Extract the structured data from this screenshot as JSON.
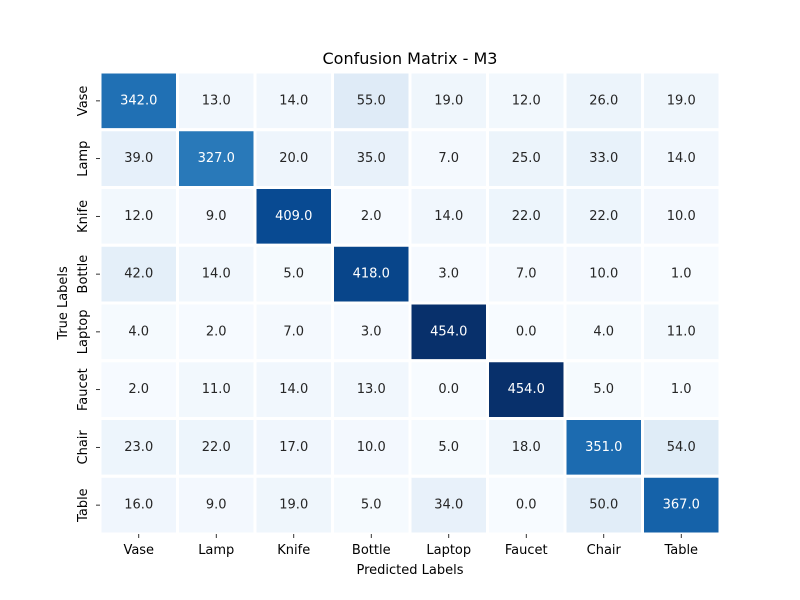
{
  "chart_data": {
    "type": "heatmap",
    "title": "Confusion Matrix - M3",
    "xlabel": "Predicted Labels",
    "ylabel": "True Labels",
    "x_categories": [
      "Vase",
      "Lamp",
      "Knife",
      "Bottle",
      "Laptop",
      "Faucet",
      "Chair",
      "Table"
    ],
    "y_categories": [
      "Vase",
      "Lamp",
      "Knife",
      "Bottle",
      "Laptop",
      "Faucet",
      "Chair",
      "Table"
    ],
    "values": [
      [
        342.0,
        13.0,
        14.0,
        55.0,
        19.0,
        12.0,
        26.0,
        19.0
      ],
      [
        39.0,
        327.0,
        20.0,
        35.0,
        7.0,
        25.0,
        33.0,
        14.0
      ],
      [
        12.0,
        9.0,
        409.0,
        2.0,
        14.0,
        22.0,
        22.0,
        10.0
      ],
      [
        42.0,
        14.0,
        5.0,
        418.0,
        3.0,
        7.0,
        10.0,
        1.0
      ],
      [
        4.0,
        2.0,
        7.0,
        3.0,
        454.0,
        0.0,
        4.0,
        11.0
      ],
      [
        2.0,
        11.0,
        14.0,
        13.0,
        0.0,
        454.0,
        5.0,
        1.0
      ],
      [
        23.0,
        22.0,
        17.0,
        10.0,
        5.0,
        18.0,
        351.0,
        54.0
      ],
      [
        16.0,
        9.0,
        19.0,
        5.0,
        34.0,
        0.0,
        50.0,
        367.0
      ]
    ],
    "colormap": "Blues",
    "value_range": [
      0,
      454
    ],
    "colorbar": false,
    "grid": false
  }
}
